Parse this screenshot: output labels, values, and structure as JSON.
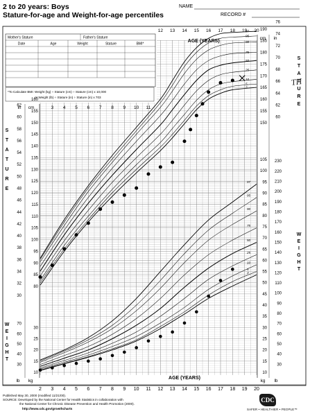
{
  "header": {
    "title": "2 to 20 years: Boys",
    "subtitle": "Stature-for-age and Weight-for-age percentiles",
    "name_label": "NAME",
    "record_label": "RECORD #"
  },
  "info_table": {
    "mothers_stature": "Mother's Stature",
    "fathers_stature": "Father's Stature",
    "columns": [
      "Date",
      "Age",
      "Weight",
      "Stature",
      "BMI*"
    ],
    "bmi_note_1": "*To Calculate BMI: Weight (kg) ÷ Stature (cm) ÷ Stature (cm) x 10,000",
    "bmi_note_2": "or Weight (lb) ÷ Stature (in) ÷ Stature (in) x 703"
  },
  "axis_titles": {
    "age_top": "AGE (YEARS)",
    "age_bottom": "AGE (YEARS)",
    "stature_left": "STATURE",
    "stature_right": "STATURE",
    "weight_left": "WEIGHT",
    "weight_right": "WEIGHT",
    "in": "in",
    "cm": "cm",
    "kg": "kg",
    "lb": "lb"
  },
  "footer": {
    "published": "Published May 30, 2000 (modified 11/21/00).",
    "source_1": "SOURCE: Developed by the National Center for Health Statistics in collaboration with",
    "source_2": "the National Center for Chronic Disease Prevention and Health Promotion (2000).",
    "url": "http://www.cdc.gov/growthcharts",
    "logo": "CDC",
    "tagline": "SAFER • HEALTHIER • PEOPLE™"
  },
  "annotation": "TH",
  "chart_data": {
    "type": "line",
    "age_ticks": [
      2,
      3,
      4,
      5,
      6,
      7,
      8,
      9,
      10,
      11,
      12,
      13,
      14,
      15,
      16,
      17,
      18,
      19,
      20
    ],
    "age_ticks_inner": [
      3,
      4,
      5,
      6,
      7,
      8,
      9,
      10,
      11
    ],
    "age_ticks_top": [
      12,
      13,
      14,
      15,
      16,
      17,
      18,
      19,
      20
    ],
    "stature_cm_ticks": [
      80,
      85,
      90,
      95,
      100,
      105,
      110,
      115,
      120,
      125,
      130,
      135,
      140,
      145,
      150,
      155,
      160
    ],
    "stature_cm_ticks_right": [
      150,
      155,
      160,
      165,
      170,
      175,
      180,
      185,
      190
    ],
    "stature_in_ticks": [
      30,
      32,
      34,
      36,
      38,
      40,
      42,
      44,
      46,
      48,
      50,
      52,
      54,
      56,
      58,
      60,
      62
    ],
    "stature_in_ticks_right": [
      60,
      62,
      64,
      66,
      68,
      70,
      72,
      74,
      76
    ],
    "weight_kg_ticks": [
      10,
      15,
      20,
      25,
      30,
      35,
      40,
      45,
      50,
      55,
      60,
      65,
      70,
      75,
      80,
      85,
      90,
      95,
      100,
      105
    ],
    "weight_lb_ticks": [
      30,
      40,
      50,
      60,
      70,
      80,
      90,
      100,
      110,
      120,
      130,
      140,
      150,
      160,
      170,
      180,
      190,
      200,
      210,
      220,
      230
    ],
    "weight_kg_ticks_left": [
      10,
      15,
      20,
      25,
      30
    ],
    "weight_lb_ticks_left": [
      30,
      40,
      50,
      60,
      70
    ],
    "stature_percentiles": [
      {
        "name": "97",
        "values": [
          [
            2,
            92.0
          ],
          [
            4,
            108.5
          ],
          [
            6,
            123.0
          ],
          [
            8,
            136.0
          ],
          [
            10,
            148.0
          ],
          [
            12,
            160.0
          ],
          [
            13,
            168.0
          ],
          [
            14,
            176.0
          ],
          [
            15,
            182.0
          ],
          [
            16,
            186.0
          ],
          [
            17,
            188.0
          ],
          [
            18,
            188.5
          ],
          [
            20,
            189.0
          ]
        ]
      },
      {
        "name": "95",
        "values": [
          [
            2,
            91.5
          ],
          [
            4,
            107.5
          ],
          [
            6,
            122.0
          ],
          [
            8,
            134.5
          ],
          [
            10,
            146.5
          ],
          [
            12,
            158.5
          ],
          [
            13,
            166.0
          ],
          [
            14,
            174.0
          ],
          [
            15,
            180.0
          ],
          [
            16,
            184.0
          ],
          [
            17,
            186.0
          ],
          [
            18,
            186.5
          ],
          [
            20,
            187.0
          ]
        ]
      },
      {
        "name": "90",
        "values": [
          [
            2,
            90.5
          ],
          [
            4,
            106.0
          ],
          [
            6,
            120.5
          ],
          [
            8,
            133.0
          ],
          [
            10,
            145.0
          ],
          [
            12,
            156.5
          ],
          [
            13,
            163.5
          ],
          [
            14,
            171.0
          ],
          [
            15,
            177.0
          ],
          [
            16,
            181.0
          ],
          [
            17,
            183.0
          ],
          [
            18,
            184.0
          ],
          [
            20,
            184.5
          ]
        ]
      },
      {
        "name": "75",
        "values": [
          [
            2,
            88.5
          ],
          [
            4,
            104.0
          ],
          [
            6,
            118.0
          ],
          [
            8,
            130.5
          ],
          [
            10,
            142.0
          ],
          [
            12,
            153.0
          ],
          [
            13,
            159.5
          ],
          [
            14,
            166.5
          ],
          [
            15,
            172.5
          ],
          [
            16,
            176.5
          ],
          [
            17,
            178.5
          ],
          [
            18,
            179.5
          ],
          [
            20,
            180.0
          ]
        ]
      },
      {
        "name": "50",
        "values": [
          [
            2,
            86.5
          ],
          [
            4,
            102.0
          ],
          [
            6,
            115.5
          ],
          [
            8,
            127.5
          ],
          [
            10,
            138.5
          ],
          [
            12,
            149.0
          ],
          [
            13,
            155.5
          ],
          [
            14,
            162.0
          ],
          [
            15,
            168.0
          ],
          [
            16,
            172.5
          ],
          [
            17,
            174.5
          ],
          [
            18,
            175.5
          ],
          [
            20,
            176.5
          ]
        ]
      },
      {
        "name": "25",
        "values": [
          [
            2,
            84.5
          ],
          [
            4,
            99.5
          ],
          [
            6,
            112.5
          ],
          [
            8,
            124.5
          ],
          [
            10,
            135.0
          ],
          [
            12,
            145.0
          ],
          [
            13,
            151.0
          ],
          [
            14,
            157.5
          ],
          [
            15,
            163.5
          ],
          [
            16,
            168.0
          ],
          [
            17,
            170.5
          ],
          [
            18,
            171.5
          ],
          [
            20,
            172.5
          ]
        ]
      },
      {
        "name": "10",
        "values": [
          [
            2,
            82.5
          ],
          [
            4,
            97.5
          ],
          [
            6,
            110.0
          ],
          [
            8,
            121.5
          ],
          [
            10,
            132.0
          ],
          [
            12,
            141.5
          ],
          [
            13,
            147.5
          ],
          [
            14,
            153.5
          ],
          [
            15,
            159.5
          ],
          [
            16,
            164.0
          ],
          [
            17,
            166.5
          ],
          [
            18,
            167.5
          ],
          [
            20,
            168.5
          ]
        ]
      },
      {
        "name": "5",
        "values": [
          [
            2,
            81.5
          ],
          [
            4,
            96.0
          ],
          [
            6,
            108.5
          ],
          [
            8,
            120.0
          ],
          [
            10,
            130.0
          ],
          [
            12,
            139.5
          ],
          [
            13,
            145.0
          ],
          [
            14,
            151.0
          ],
          [
            15,
            157.0
          ],
          [
            16,
            161.5
          ],
          [
            17,
            164.0
          ],
          [
            18,
            165.5
          ],
          [
            20,
            166.5
          ]
        ]
      },
      {
        "name": "3",
        "values": [
          [
            2,
            80.5
          ],
          [
            4,
            95.0
          ],
          [
            6,
            107.5
          ],
          [
            8,
            118.5
          ],
          [
            10,
            128.5
          ],
          [
            12,
            138.0
          ],
          [
            13,
            143.5
          ],
          [
            14,
            149.5
          ],
          [
            15,
            155.5
          ],
          [
            16,
            160.0
          ],
          [
            17,
            162.5
          ],
          [
            18,
            164.0
          ],
          [
            20,
            165.0
          ]
        ]
      }
    ],
    "weight_percentiles": [
      {
        "name": "97",
        "values": [
          [
            2,
            15.5
          ],
          [
            4,
            20.0
          ],
          [
            6,
            25.5
          ],
          [
            8,
            33.0
          ],
          [
            10,
            43.0
          ],
          [
            12,
            55.0
          ],
          [
            14,
            67.0
          ],
          [
            16,
            78.0
          ],
          [
            18,
            86.0
          ],
          [
            20,
            94.0
          ]
        ]
      },
      {
        "name": "95",
        "values": [
          [
            2,
            15.0
          ],
          [
            4,
            19.5
          ],
          [
            6,
            24.5
          ],
          [
            8,
            31.0
          ],
          [
            10,
            40.0
          ],
          [
            12,
            51.0
          ],
          [
            14,
            63.0
          ],
          [
            16,
            73.5
          ],
          [
            18,
            81.0
          ],
          [
            20,
            88.0
          ]
        ]
      },
      {
        "name": "90",
        "values": [
          [
            2,
            14.5
          ],
          [
            4,
            18.8
          ],
          [
            6,
            23.5
          ],
          [
            8,
            29.5
          ],
          [
            10,
            37.5
          ],
          [
            12,
            47.5
          ],
          [
            14,
            59.0
          ],
          [
            16,
            69.0
          ],
          [
            18,
            76.0
          ],
          [
            20,
            82.0
          ]
        ]
      },
      {
        "name": "75",
        "values": [
          [
            2,
            13.5
          ],
          [
            4,
            17.5
          ],
          [
            6,
            21.5
          ],
          [
            8,
            27.0
          ],
          [
            10,
            34.0
          ],
          [
            12,
            43.0
          ],
          [
            14,
            53.5
          ],
          [
            16,
            62.5
          ],
          [
            18,
            69.0
          ],
          [
            20,
            74.5
          ]
        ]
      },
      {
        "name": "50",
        "values": [
          [
            2,
            12.7
          ],
          [
            4,
            16.3
          ],
          [
            6,
            20.0
          ],
          [
            8,
            25.0
          ],
          [
            10,
            31.0
          ],
          [
            12,
            38.5
          ],
          [
            14,
            48.0
          ],
          [
            16,
            56.5
          ],
          [
            18,
            63.0
          ],
          [
            20,
            68.0
          ]
        ]
      },
      {
        "name": "25",
        "values": [
          [
            2,
            12.0
          ],
          [
            4,
            15.3
          ],
          [
            6,
            18.7
          ],
          [
            8,
            23.0
          ],
          [
            10,
            28.0
          ],
          [
            12,
            35.0
          ],
          [
            14,
            43.0
          ],
          [
            16,
            51.5
          ],
          [
            18,
            57.5
          ],
          [
            20,
            62.5
          ]
        ]
      },
      {
        "name": "10",
        "values": [
          [
            2,
            11.5
          ],
          [
            4,
            14.5
          ],
          [
            6,
            17.7
          ],
          [
            8,
            21.5
          ],
          [
            10,
            26.0
          ],
          [
            12,
            32.0
          ],
          [
            14,
            39.0
          ],
          [
            16,
            47.0
          ],
          [
            18,
            53.0
          ],
          [
            20,
            58.0
          ]
        ]
      },
      {
        "name": "5",
        "values": [
          [
            2,
            11.0
          ],
          [
            4,
            14.0
          ],
          [
            6,
            17.0
          ],
          [
            8,
            20.5
          ],
          [
            10,
            24.5
          ],
          [
            12,
            30.5
          ],
          [
            14,
            37.0
          ],
          [
            16,
            44.5
          ],
          [
            18,
            50.5
          ],
          [
            20,
            55.0
          ]
        ]
      },
      {
        "name": "3",
        "values": [
          [
            2,
            10.8
          ],
          [
            4,
            13.8
          ],
          [
            6,
            16.7
          ],
          [
            8,
            20.0
          ],
          [
            10,
            24.0
          ],
          [
            12,
            29.5
          ],
          [
            14,
            36.0
          ],
          [
            16,
            43.0
          ],
          [
            18,
            48.5
          ],
          [
            20,
            53.5
          ]
        ]
      }
    ],
    "stature_points": [
      [
        2,
        84
      ],
      [
        3,
        89
      ],
      [
        4,
        96
      ],
      [
        5,
        102
      ],
      [
        6,
        107
      ],
      [
        7,
        113
      ],
      [
        8,
        116
      ],
      [
        9,
        119
      ],
      [
        10,
        122
      ],
      [
        11,
        128
      ],
      [
        12,
        131
      ],
      [
        13,
        133
      ],
      [
        14,
        142
      ],
      [
        14.5,
        147
      ],
      [
        15,
        153
      ],
      [
        15.5,
        158
      ],
      [
        16,
        163
      ],
      [
        17,
        167
      ],
      [
        18,
        168
      ]
    ],
    "weight_points": [
      [
        2,
        11
      ],
      [
        3,
        12
      ],
      [
        4,
        13
      ],
      [
        5,
        14
      ],
      [
        6,
        15
      ],
      [
        7,
        16
      ],
      [
        8,
        17.5
      ],
      [
        9,
        19
      ],
      [
        10,
        21
      ],
      [
        11,
        24
      ],
      [
        12,
        26
      ],
      [
        13,
        28
      ],
      [
        14,
        32
      ],
      [
        15,
        37
      ],
      [
        16,
        44
      ],
      [
        17,
        51
      ],
      [
        18,
        56
      ]
    ],
    "x_mark": [
      18.8,
      169
    ]
  }
}
